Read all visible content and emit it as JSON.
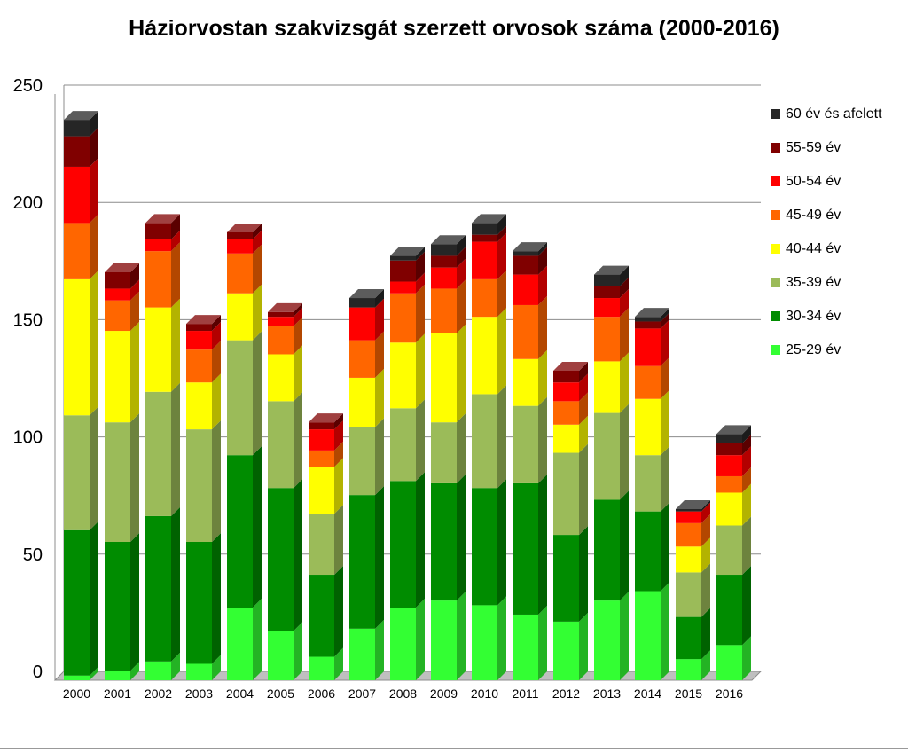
{
  "chart_data": {
    "type": "bar",
    "stacked": true,
    "title": "Háziorvostan szakvizsgát szerzett orvosok száma (2000-2016)",
    "xlabel": "",
    "ylabel": "",
    "ylim": [
      0,
      250
    ],
    "yticks": [
      0,
      50,
      100,
      150,
      200,
      250
    ],
    "grid": true,
    "legend_position": "right",
    "categories": [
      "2000",
      "2001",
      "2002",
      "2003",
      "2004",
      "2005",
      "2006",
      "2007",
      "2008",
      "2009",
      "2010",
      "2011",
      "2012",
      "2013",
      "2014",
      "2015",
      "2016"
    ],
    "series": [
      {
        "name": "25-29 év",
        "color": "#33ff33",
        "values": [
          2,
          4,
          8,
          7,
          31,
          21,
          10,
          22,
          31,
          34,
          32,
          28,
          25,
          34,
          38,
          9,
          15
        ]
      },
      {
        "name": "30-34 év",
        "color": "#008c00",
        "values": [
          62,
          55,
          62,
          52,
          65,
          61,
          35,
          57,
          54,
          50,
          50,
          56,
          37,
          43,
          34,
          18,
          30
        ]
      },
      {
        "name": "35-39 év",
        "color": "#9bbb59",
        "values": [
          49,
          51,
          53,
          48,
          49,
          37,
          26,
          29,
          31,
          26,
          40,
          33,
          35,
          37,
          24,
          19,
          21
        ]
      },
      {
        "name": "40-44 év",
        "color": "#ffff00",
        "values": [
          58,
          39,
          36,
          20,
          20,
          20,
          20,
          21,
          28,
          38,
          33,
          20,
          12,
          22,
          24,
          11,
          14
        ]
      },
      {
        "name": "45-49 év",
        "color": "#ff6600",
        "values": [
          24,
          13,
          24,
          14,
          17,
          12,
          7,
          16,
          21,
          19,
          16,
          23,
          10,
          19,
          14,
          10,
          7
        ]
      },
      {
        "name": "50-54 év",
        "color": "#ff0000",
        "values": [
          24,
          5,
          5,
          8,
          6,
          4,
          9,
          14,
          5,
          9,
          16,
          13,
          8,
          8,
          16,
          5,
          9
        ]
      },
      {
        "name": "55-59 év",
        "color": "#800000",
        "values": [
          13,
          7,
          7,
          3,
          3,
          2,
          3,
          0,
          9,
          5,
          3,
          8,
          5,
          5,
          3,
          0,
          5
        ]
      },
      {
        "name": "60 év és afelett",
        "color": "#262626",
        "values": [
          7,
          0,
          0,
          0,
          0,
          0,
          0,
          4,
          2,
          5,
          5,
          2,
          0,
          5,
          2,
          1,
          4
        ]
      }
    ]
  }
}
